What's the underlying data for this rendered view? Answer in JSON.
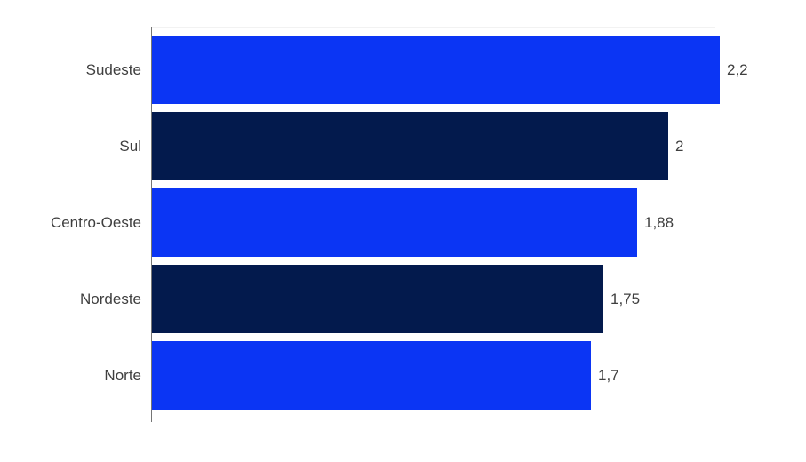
{
  "chart_data": {
    "type": "bar",
    "orientation": "horizontal",
    "title": "",
    "xlabel": "",
    "ylabel": "",
    "categories": [
      "Sudeste",
      "Sul",
      "Centro-Oeste",
      "Nordeste",
      "Norte"
    ],
    "values": [
      2.2,
      2,
      1.88,
      1.75,
      1.7
    ],
    "value_labels": [
      "2,2",
      "2",
      "1,88",
      "1,75",
      "1,7"
    ],
    "xlim": [
      0,
      2.2
    ],
    "grid": false,
    "legend": "none",
    "bar_colors": [
      "#0b35f4",
      "#031a4d"
    ],
    "axis_line_color": "#757575",
    "label_color": "#3f3f3f",
    "background": "#ffffff"
  }
}
